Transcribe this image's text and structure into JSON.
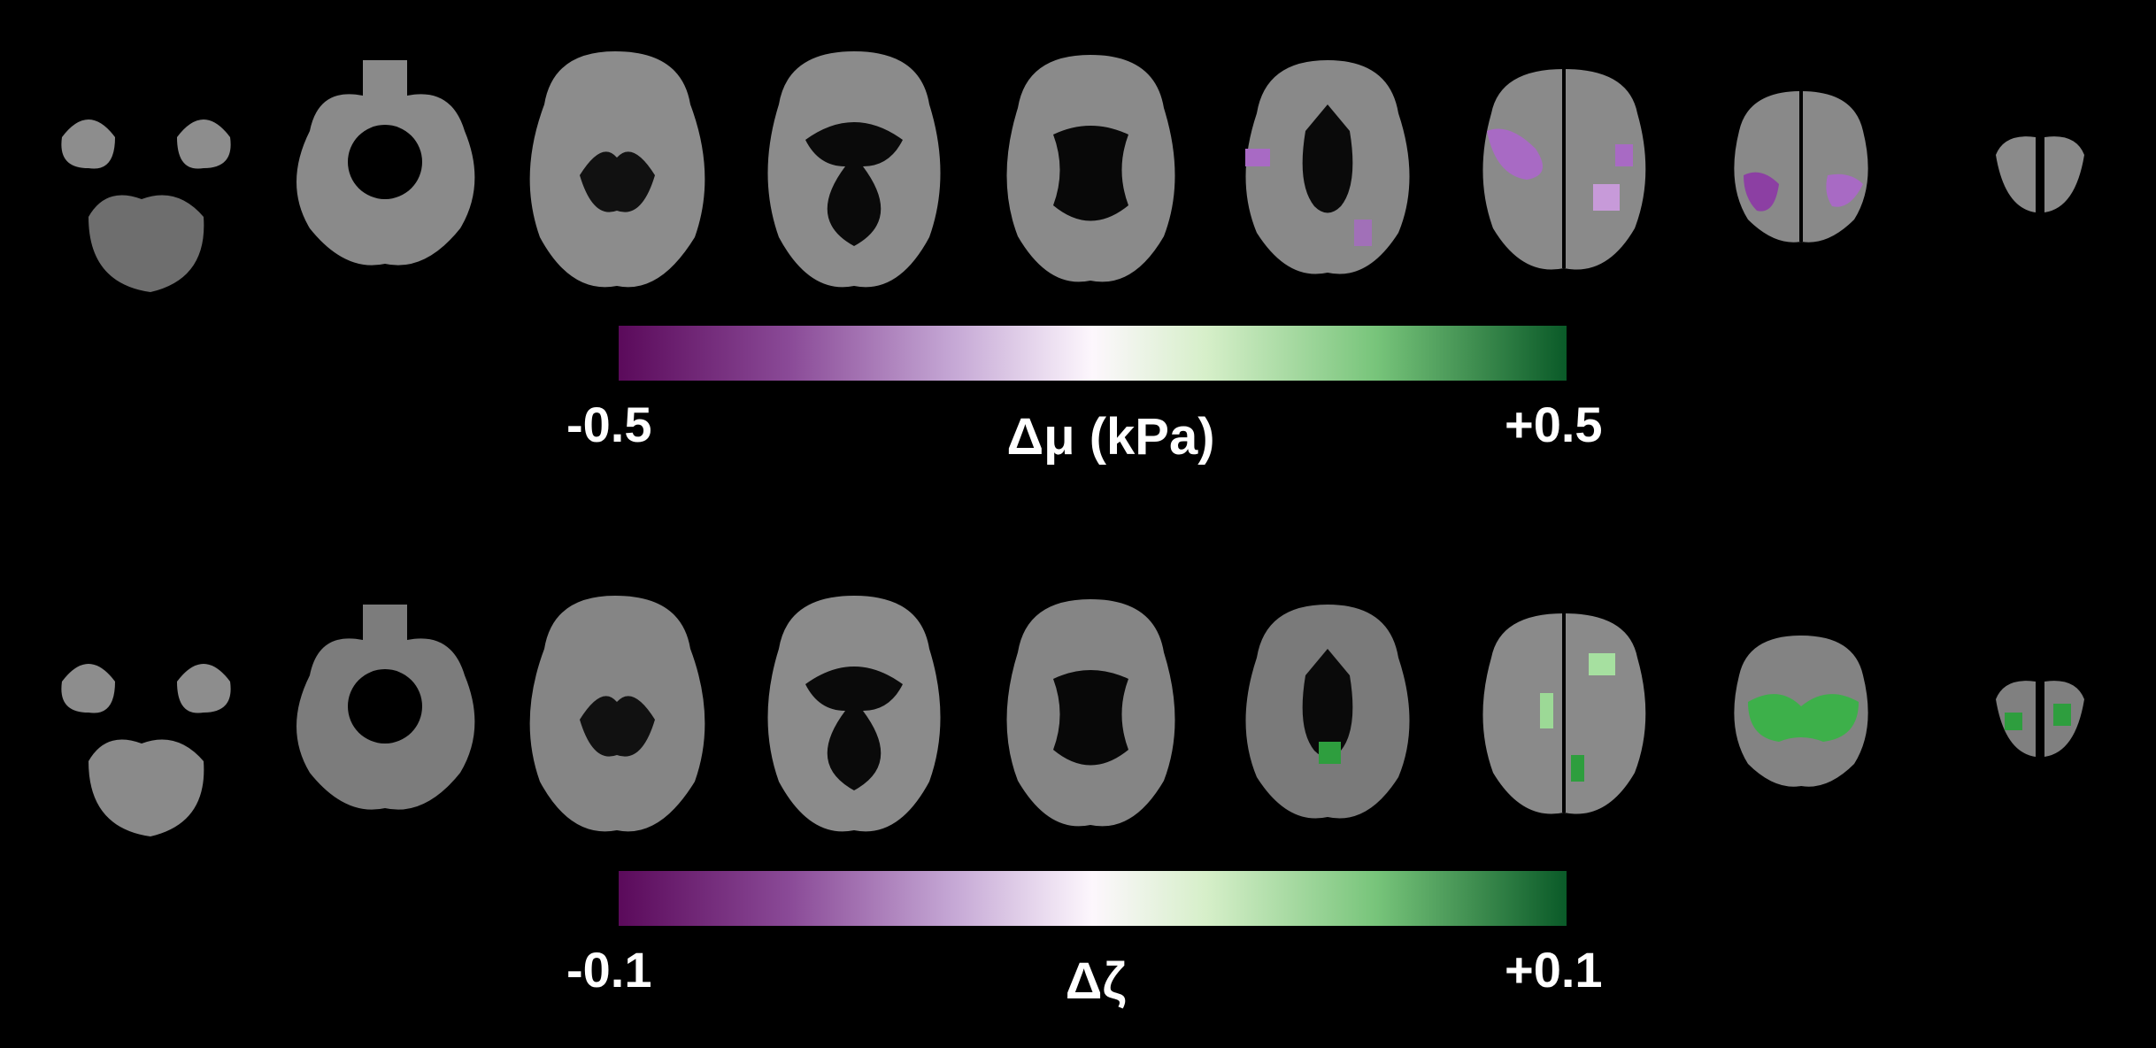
{
  "panels": [
    {
      "id": "stiffness",
      "overlay_color": "#a86ac4",
      "colorbar": {
        "min_label": "-0.5",
        "max_label": "+0.5",
        "title": "Δμ (kPa)",
        "colors": [
          "#5b0a5b",
          "#fdf7fd",
          "#0a5a28"
        ]
      }
    },
    {
      "id": "damping",
      "overlay_color": "#5cc05c",
      "colorbar": {
        "min_label": "-0.1",
        "max_label": "+0.1",
        "title": "Δζ",
        "colors": [
          "#5b0a5b",
          "#fdf7fd",
          "#0a5a28"
        ]
      }
    }
  ]
}
